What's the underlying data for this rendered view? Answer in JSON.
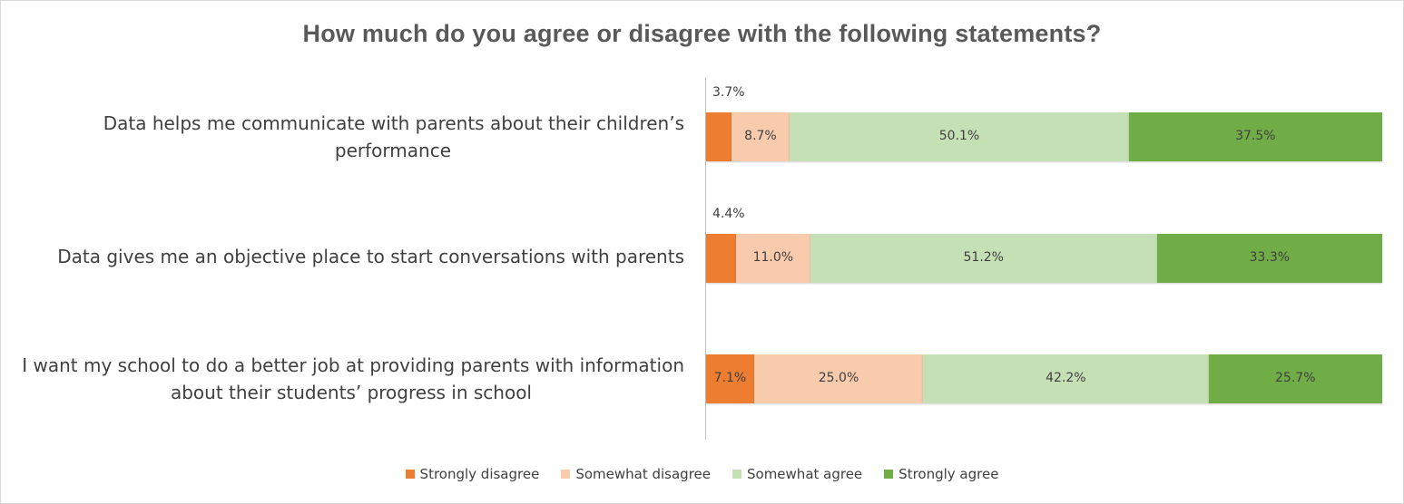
{
  "chart_data": {
    "type": "bar",
    "orientation": "horizontal",
    "stacked": true,
    "title": "How much do you agree or disagree with the following statements?",
    "categories": [
      "Data helps me communicate with parents about their children’s performance",
      "Data gives me an objective place to start conversations with parents",
      "I want my school to do a better job at providing parents with information about their students’ progress in school"
    ],
    "series": [
      {
        "name": "Strongly disagree",
        "color": "#ed7d31",
        "values": [
          3.7,
          4.4,
          7.1
        ]
      },
      {
        "name": "Somewhat disagree",
        "color": "#f8cbad",
        "values": [
          8.7,
          11.0,
          25.0
        ]
      },
      {
        "name": "Somewhat agree",
        "color": "#c5e0b4",
        "values": [
          50.1,
          51.2,
          42.2
        ]
      },
      {
        "name": "Strongly agree",
        "color": "#70ad47",
        "values": [
          37.5,
          33.3,
          25.7
        ]
      }
    ],
    "value_labels": [
      [
        "3.7%",
        "8.7%",
        "50.1%",
        "37.5%"
      ],
      [
        "4.4%",
        "11.0%",
        "51.2%",
        "33.3%"
      ],
      [
        "7.1%",
        "25.0%",
        "42.2%",
        "25.7%"
      ]
    ],
    "xlim": [
      0,
      100
    ],
    "legend": "bottom"
  }
}
